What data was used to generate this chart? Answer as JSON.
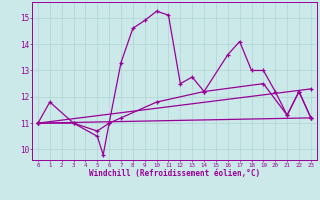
{
  "xlabel": "Windchill (Refroidissement éolien,°C)",
  "bg_color": "#cce9e9",
  "line_color": "#990099",
  "grid_color": "#b0d4d4",
  "xlim": [
    -0.5,
    23.5
  ],
  "ylim": [
    9.6,
    15.6
  ],
  "yticks": [
    10,
    11,
    12,
    13,
    14,
    15
  ],
  "xticks": [
    0,
    1,
    2,
    3,
    4,
    5,
    6,
    7,
    8,
    9,
    10,
    11,
    12,
    13,
    14,
    15,
    16,
    17,
    18,
    19,
    20,
    21,
    22,
    23
  ],
  "line1_x": [
    0,
    1,
    3,
    5,
    6,
    7,
    8,
    9,
    10,
    11,
    12,
    13,
    14,
    16,
    17,
    18,
    19,
    20,
    21,
    22,
    23
  ],
  "line1_y": [
    11.0,
    11.8,
    11.0,
    10.7,
    11.0,
    13.3,
    14.6,
    14.9,
    15.25,
    15.1,
    12.5,
    12.75,
    12.2,
    13.6,
    14.1,
    13.0,
    13.0,
    12.2,
    11.3,
    12.2,
    11.2
  ],
  "line2_x": [
    0,
    3,
    5,
    5.5,
    6,
    7,
    10,
    14,
    19,
    21,
    22,
    23
  ],
  "line2_y": [
    11.0,
    11.0,
    10.5,
    9.8,
    11.0,
    11.2,
    11.8,
    12.2,
    12.5,
    11.3,
    12.2,
    11.2
  ],
  "line3_x": [
    0,
    23
  ],
  "line3_y": [
    11.0,
    11.2
  ],
  "line4_x": [
    0,
    23
  ],
  "line4_y": [
    11.0,
    12.3
  ]
}
